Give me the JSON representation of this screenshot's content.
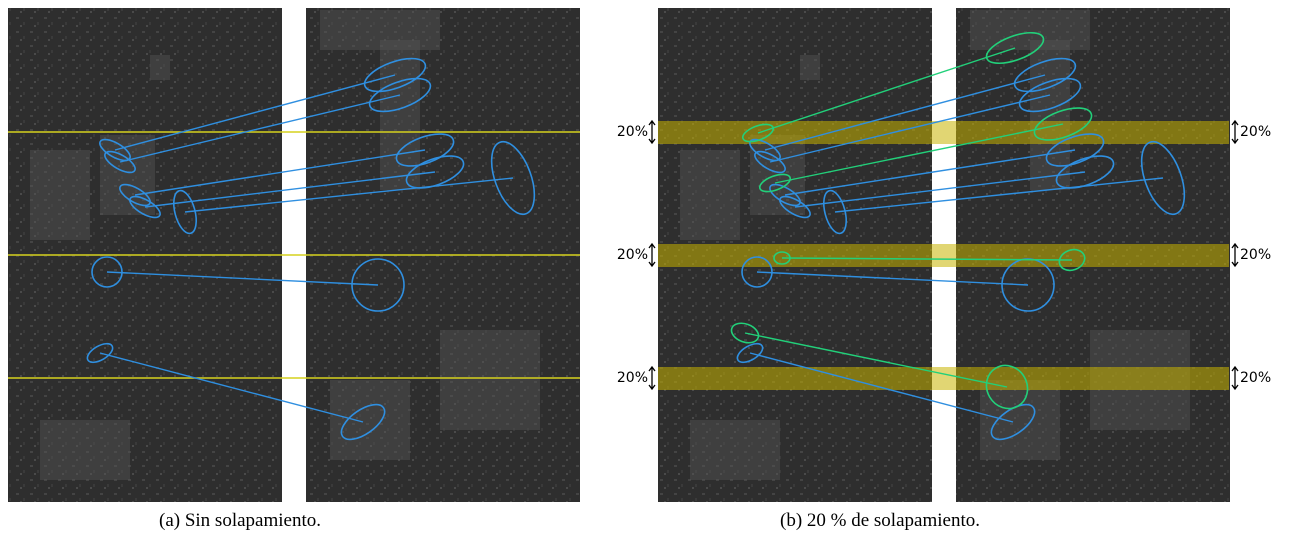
{
  "figure": {
    "panels": [
      {
        "caption": "(a) Sin solapamiento."
      },
      {
        "caption": "(b) 20 % de solapamiento.",
        "overlap_labels_left": [
          "20%",
          "20%",
          "20%"
        ],
        "overlap_labels_right": [
          "20%",
          "20%",
          "20%"
        ]
      }
    ]
  }
}
